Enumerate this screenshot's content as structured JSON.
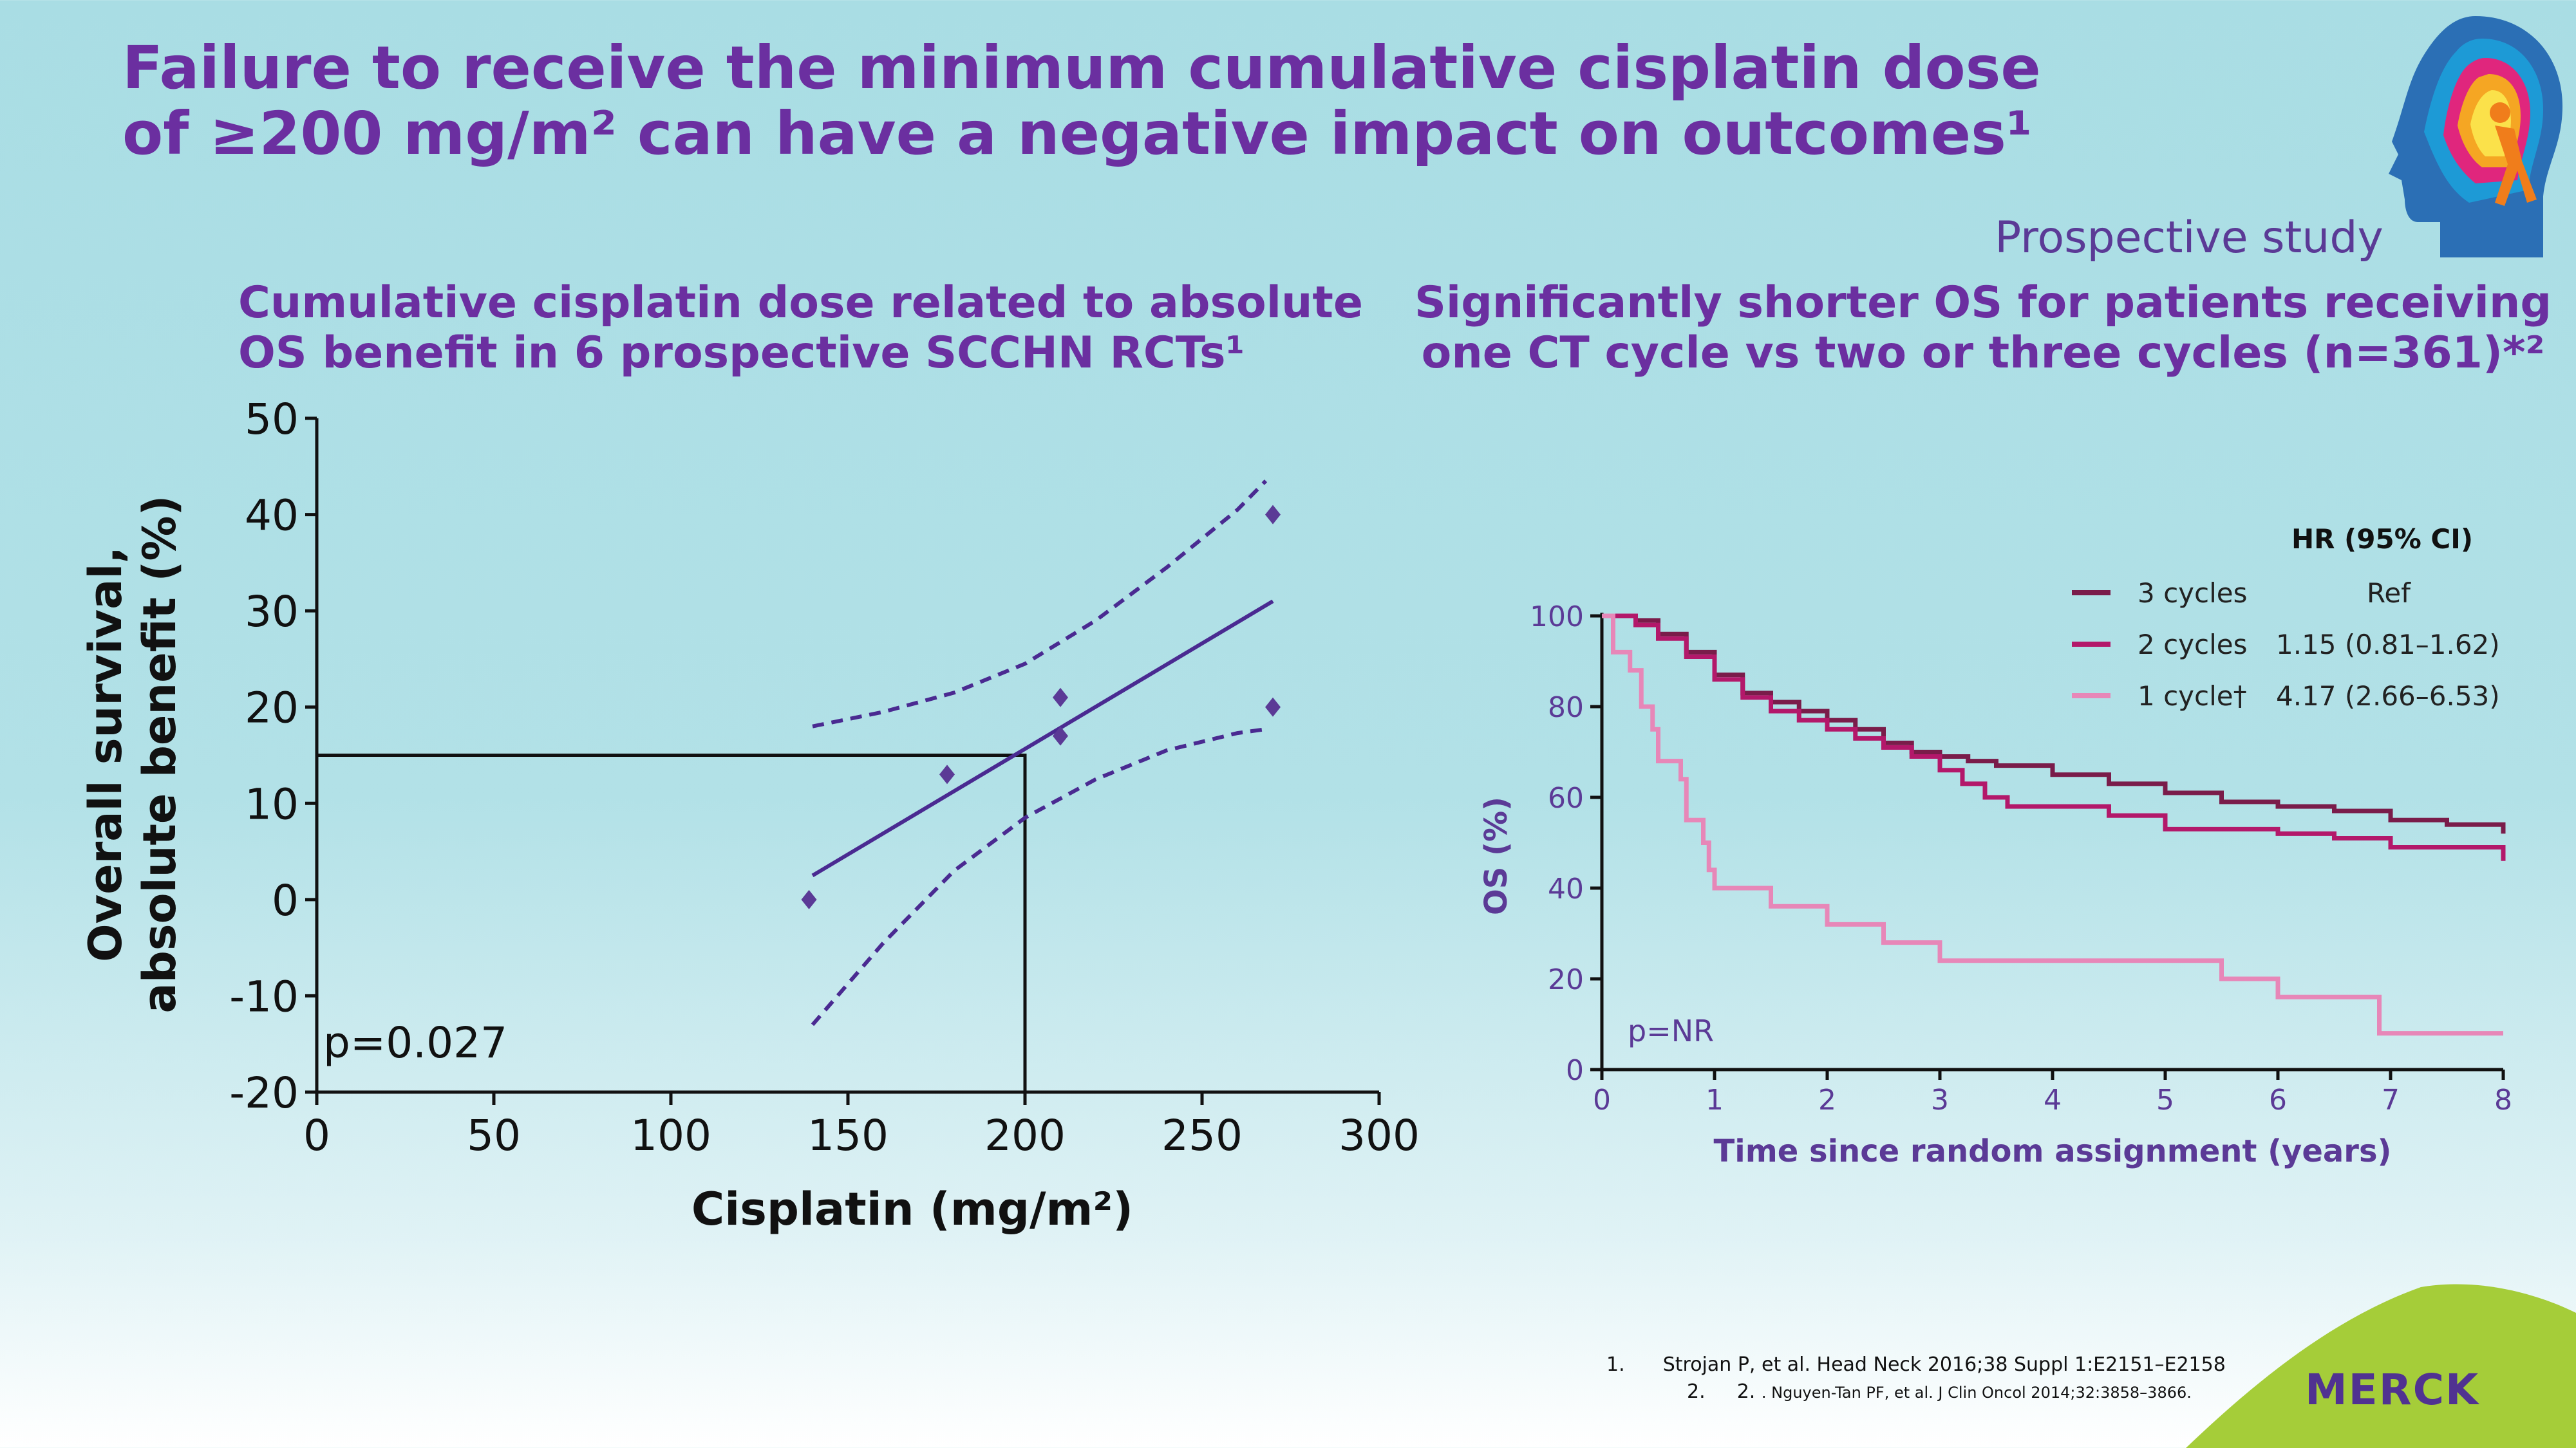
{
  "title": {
    "line1": "Failure to receive the minimum cumulative cisplatin dose",
    "line2": "of ≥200 mg/m² can have a negative impact on outcomes¹"
  },
  "left_panel": {
    "heading_line1": "Cumulative cisplatin dose related to absolute",
    "heading_line2": "OS benefit in 6 prospective SCCHN RCTs¹"
  },
  "right_panel": {
    "kicker": "Prospective study",
    "heading_line1": "Significantly shorter OS for patients receiving",
    "heading_line2": "one CT cycle vs two or three cycles (n=361)*²"
  },
  "references": {
    "ref1_num": "1.",
    "ref1_text": "Strojan P, et al. Head Neck 2016;38 Suppl 1:E2151–E2158",
    "ref2_num": "2.",
    "ref2_inner": "2.",
    "ref2_text": ". Nguyen-Tan PF, et al. J Clin Oncol 2014;32:3858–3866.",
    "ref2_dot": "."
  },
  "logo": {
    "text": "MERCK",
    "color": "#503291",
    "corner_color": "#a5cd39"
  },
  "chart_data": [
    {
      "type": "scatter",
      "title": "",
      "xlabel": "Cisplatin (mg/m²)",
      "ylabel_line1": "Overall survival,",
      "ylabel_line2": "absolute benefit (%)",
      "xlim": [
        0,
        300
      ],
      "ylim": [
        -20,
        50
      ],
      "xticks": [
        "0",
        "50",
        "100",
        "150",
        "200",
        "250",
        "300"
      ],
      "yticks": [
        "50",
        "40",
        "30",
        "20",
        "10",
        "0",
        "-10",
        "-20"
      ],
      "points": [
        {
          "x": 139,
          "y": 0
        },
        {
          "x": 178,
          "y": 13
        },
        {
          "x": 210,
          "y": 21
        },
        {
          "x": 210,
          "y": 17
        },
        {
          "x": 270,
          "y": 40
        },
        {
          "x": 270,
          "y": 20
        }
      ],
      "regression": {
        "x": [
          140,
          270
        ],
        "y": [
          2.5,
          31
        ]
      },
      "ci_upper": {
        "x": [
          140,
          160,
          180,
          200,
          220,
          240,
          260,
          268
        ],
        "y": [
          18,
          19.5,
          21.5,
          24.5,
          29,
          34.5,
          40.5,
          43.5
        ]
      },
      "ci_lower": {
        "x": [
          140,
          160,
          180,
          200,
          220,
          240,
          260,
          268
        ],
        "y": [
          -13,
          -4.5,
          3,
          8.5,
          12.5,
          15.5,
          17.3,
          17.7
        ]
      },
      "reference_x": 200,
      "reference_y": 15,
      "annotation": "p=0.027",
      "colors": {
        "points": "#5b3a96",
        "lines": "#4a2a91",
        "reference": "#111111"
      }
    },
    {
      "type": "line",
      "title": "",
      "xlabel": "Time since random assignment (years)",
      "ylabel": "OS (%)",
      "xlim": [
        0,
        8
      ],
      "ylim": [
        0,
        100
      ],
      "xticks": [
        "0",
        "1",
        "2",
        "3",
        "4",
        "5",
        "6",
        "7",
        "8"
      ],
      "yticks": [
        "100",
        "80",
        "60",
        "40",
        "20",
        "0"
      ],
      "annotation": "p=NR",
      "legend_header": "HR (95% CI)",
      "series": [
        {
          "name": "3 cycles",
          "hr": "Ref",
          "color": "#7a1c4a",
          "x": [
            0,
            0.3,
            0.5,
            0.75,
            1.0,
            1.25,
            1.5,
            1.75,
            2.0,
            2.25,
            2.5,
            2.75,
            3.0,
            3.25,
            3.5,
            4.0,
            4.5,
            5.0,
            5.5,
            6.0,
            6.5,
            7.0,
            7.5,
            8.0
          ],
          "y": [
            100,
            99,
            96,
            92,
            87,
            83,
            81,
            79,
            77,
            75,
            72,
            70,
            69,
            68,
            67,
            65,
            63,
            61,
            59,
            58,
            57,
            55,
            54,
            52
          ]
        },
        {
          "name": "2 cycles",
          "hr": "1.15 (0.81–1.62)",
          "color": "#b3186a",
          "x": [
            0,
            0.3,
            0.5,
            0.75,
            1.0,
            1.25,
            1.5,
            1.75,
            2.0,
            2.25,
            2.5,
            2.75,
            3.0,
            3.2,
            3.4,
            3.6,
            4.0,
            4.5,
            5.0,
            5.5,
            6.0,
            6.5,
            7.0,
            7.5,
            8.0
          ],
          "y": [
            100,
            98,
            95,
            91,
            86,
            82,
            79,
            77,
            75,
            73,
            71,
            69,
            66,
            63,
            60,
            58,
            58,
            56,
            53,
            53,
            52,
            51,
            49,
            49,
            46
          ]
        },
        {
          "name": "1 cycle†",
          "hr": "4.17 (2.66–6.53)",
          "color": "#e787b8",
          "x": [
            0,
            0.1,
            0.25,
            0.35,
            0.45,
            0.5,
            0.7,
            0.75,
            0.9,
            0.95,
            1.0,
            1.5,
            2.0,
            2.5,
            3.0,
            4.0,
            5.0,
            5.5,
            6.0,
            6.5,
            6.9,
            7.5,
            8.0
          ],
          "y": [
            100,
            92,
            88,
            80,
            75,
            68,
            64,
            55,
            50,
            44,
            40,
            36,
            32,
            28,
            24,
            24,
            24,
            20,
            16,
            16,
            8,
            8,
            8
          ]
        }
      ]
    }
  ]
}
